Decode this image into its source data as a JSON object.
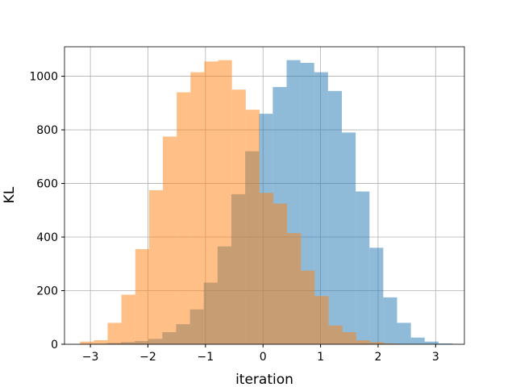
{
  "chart_data": {
    "type": "bar",
    "title": "",
    "xlabel": "iteration",
    "ylabel": "KL",
    "xlim": [
      -3.45,
      3.5
    ],
    "ylim": [
      0,
      1110
    ],
    "xticks": [
      -3,
      -2,
      -1,
      0,
      1,
      2,
      3
    ],
    "yticks": [
      0,
      200,
      400,
      600,
      800,
      1000
    ],
    "grid": true,
    "legend": "none",
    "series": [
      {
        "color": "#1f77b4",
        "opacity": 0.5,
        "bin_edges": [
          -2.95,
          -2.71,
          -2.47,
          -2.23,
          -1.99,
          -1.75,
          -1.51,
          -1.27,
          -1.03,
          -0.79,
          -0.55,
          -0.31,
          -0.07,
          0.17,
          0.41,
          0.65,
          0.89,
          1.13,
          1.37,
          1.61,
          1.85,
          2.09,
          2.33,
          2.57,
          2.81,
          3.05,
          3.29
        ],
        "counts": [
          2,
          5,
          8,
          12,
          20,
          45,
          75,
          130,
          230,
          365,
          560,
          720,
          860,
          960,
          1060,
          1050,
          1015,
          945,
          790,
          570,
          360,
          175,
          80,
          25,
          10,
          3
        ]
      },
      {
        "color": "#ff7f0e",
        "opacity": 0.5,
        "bin_edges": [
          -3.18,
          -2.94,
          -2.7,
          -2.46,
          -2.22,
          -1.98,
          -1.74,
          -1.5,
          -1.26,
          -1.02,
          -0.78,
          -0.54,
          -0.3,
          -0.06,
          0.18,
          0.42,
          0.66,
          0.9,
          1.14,
          1.38,
          1.62,
          1.86,
          2.1,
          2.34
        ],
        "counts": [
          10,
          15,
          80,
          185,
          355,
          575,
          775,
          940,
          1015,
          1055,
          1060,
          950,
          875,
          565,
          525,
          415,
          275,
          180,
          70,
          45,
          15,
          8,
          3
        ]
      }
    ]
  }
}
